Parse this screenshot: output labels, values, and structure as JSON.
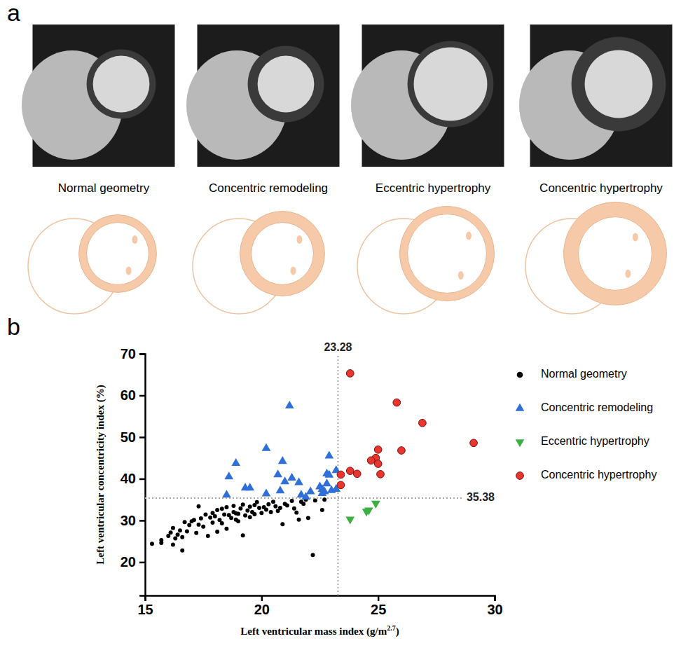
{
  "panel_a": {
    "letter": "a",
    "captions": [
      "Normal geometry",
      "Concentric remodeling",
      "Eccentric hypertrophy",
      "Concentric hypertrophy"
    ]
  },
  "chart_data": {
    "letter": "b",
    "type": "scatter",
    "x_label": "Left ventricular mass index (g/m2.7)",
    "y_label": "Left ventricular concentricity index (%)",
    "xlim": [
      15,
      30
    ],
    "xticks": [
      15,
      20,
      25,
      30
    ],
    "ylim": [
      12,
      70
    ],
    "yticks": [
      20,
      30,
      40,
      50,
      60,
      70
    ],
    "grid": false,
    "legend": "right",
    "reference_lines": [
      {
        "axis": "x",
        "value": 23.28,
        "label": "23.28"
      },
      {
        "axis": "y",
        "value": 35.38,
        "label": "35.38"
      }
    ],
    "series": [
      {
        "name": "Normal geometry",
        "color": "#000000",
        "marker": "circle",
        "x": [
          15.3,
          15.7,
          15.7,
          16.0,
          16.1,
          16.2,
          16.2,
          16.4,
          16.5,
          16.6,
          16.6,
          16.7,
          16.8,
          16.9,
          17.0,
          17.1,
          17.2,
          17.3,
          17.3,
          17.5,
          17.6,
          17.7,
          17.8,
          17.9,
          18.0,
          18.1,
          18.1,
          18.2,
          18.3,
          18.4,
          18.5,
          18.5,
          18.6,
          18.7,
          18.8,
          18.8,
          18.9,
          19.0,
          19.0,
          19.1,
          19.2,
          19.2,
          19.3,
          19.4,
          19.5,
          19.5,
          19.6,
          19.7,
          19.8,
          19.9,
          20.0,
          20.1,
          20.2,
          20.3,
          20.4,
          20.5,
          20.6,
          20.8,
          20.9,
          21.0,
          21.1,
          21.3,
          21.4,
          21.5,
          21.6,
          21.7,
          21.9,
          22.0,
          22.2,
          22.3,
          22.6,
          22.7,
          18.3,
          17.9,
          19.7,
          20.7,
          21.8,
          16.3,
          17.4,
          18.9
        ],
        "values": [
          24.4,
          24.6,
          25.3,
          26.3,
          27.1,
          28.2,
          24.2,
          26.6,
          27.6,
          22.8,
          26.0,
          29.6,
          27.4,
          28.9,
          29.8,
          30.1,
          27.0,
          33.4,
          29.0,
          28.5,
          31.4,
          26.3,
          30.7,
          29.5,
          31.0,
          27.3,
          32.5,
          30.1,
          29.3,
          31.4,
          33.2,
          28.0,
          31.3,
          30.6,
          32.0,
          33.5,
          30.2,
          31.6,
          29.8,
          32.9,
          33.8,
          26.4,
          31.2,
          32.4,
          30.8,
          33.3,
          32.0,
          31.5,
          34.4,
          33.0,
          31.8,
          33.2,
          32.6,
          33.9,
          32.0,
          34.5,
          33.4,
          33.0,
          29.1,
          34.0,
          33.6,
          34.7,
          32.9,
          31.9,
          30.2,
          34.5,
          35.0,
          30.6,
          21.7,
          34.8,
          32.5,
          35.0,
          32.8,
          31.8,
          33.7,
          32.3,
          34.0,
          25.7,
          30.5,
          31.7
        ]
      },
      {
        "name": "Concentric remodeling",
        "color": "#2e6fd8",
        "marker": "triangle-up",
        "x": [
          18.5,
          18.6,
          18.9,
          19.3,
          19.5,
          20.2,
          20.2,
          20.7,
          20.8,
          20.9,
          21.0,
          21.2,
          21.3,
          21.6,
          21.7,
          21.9,
          22.1,
          22.5,
          22.6,
          22.7,
          22.8,
          22.9,
          22.9,
          23.0,
          23.2,
          23.2,
          22.6,
          22.8
        ],
        "values": [
          36.1,
          40.5,
          43.7,
          37.8,
          37.8,
          47.3,
          36.4,
          41.0,
          37.1,
          44.2,
          39.3,
          57.5,
          40.2,
          39.1,
          36.1,
          35.6,
          36.9,
          38.1,
          37.5,
          36.9,
          41.2,
          45.5,
          40.9,
          37.2,
          37.5,
          42.0,
          36.5,
          38.8
        ]
      },
      {
        "name": "Eccentric hypertrophy",
        "color": "#3cb043",
        "marker": "triangle-down",
        "x": [
          23.8,
          24.5,
          24.6,
          24.9
        ],
        "values": [
          30.3,
          32.2,
          32.5,
          34.1
        ]
      },
      {
        "name": "Concentric hypertrophy",
        "color": "#e8352d",
        "marker": "circle",
        "x": [
          23.8,
          25.8,
          26.9,
          29.1,
          26.0,
          25.0,
          24.9,
          24.7,
          25.0,
          23.8,
          24.1,
          25.1,
          23.4,
          23.4
        ],
        "values": [
          65.3,
          58.3,
          53.4,
          48.6,
          46.8,
          47.0,
          45.0,
          44.4,
          43.6,
          41.9,
          41.2,
          41.1,
          41.0,
          38.5
        ]
      }
    ]
  }
}
